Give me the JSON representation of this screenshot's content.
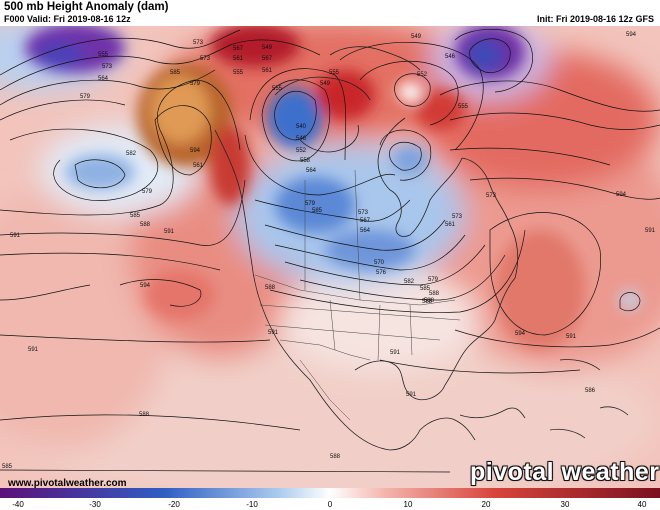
{
  "header": {
    "title": "500 mb Height Anomaly (dam)",
    "valid": "F000 Valid: Fri 2019-08-16 12z",
    "init": "Init: Fri 2019-08-16 12z GFS"
  },
  "credit": "www.pivotalweather.com",
  "logo": "pivotal weather",
  "colorbar": {
    "tick_labels": [
      "-40",
      "-30",
      "-20",
      "-10",
      "0",
      "10",
      "20",
      "30",
      "40"
    ],
    "colors": {
      "neg_strong": "#5c0f7a",
      "neg_mid": "#2f5fc4",
      "neg_weak": "#a9c9ee",
      "zero": "#ffffff",
      "pos_weak": "#f4b7b0",
      "pos_mid": "#d7443a",
      "pos_strong": "#7a1020"
    }
  },
  "contour_labels": [
    "573",
    "567",
    "561",
    "555",
    "549",
    "573",
    "567",
    "561",
    "555",
    "585",
    "579",
    "573",
    "564",
    "594",
    "561",
    "555",
    "540",
    "546",
    "552",
    "558",
    "564",
    "549",
    "555",
    "552",
    "555",
    "546",
    "549",
    "582",
    "579",
    "585",
    "591",
    "588",
    "594",
    "591",
    "567",
    "573",
    "579",
    "585",
    "591",
    "588",
    "594",
    "591",
    "594",
    "588",
    "591",
    "585",
    "582",
    "576",
    "570",
    "564",
    "561",
    "573",
    "573",
    "579",
    "588",
    "591",
    "591",
    "588",
    "586",
    "594",
    "591",
    "588",
    "588",
    "585",
    "579"
  ]
}
